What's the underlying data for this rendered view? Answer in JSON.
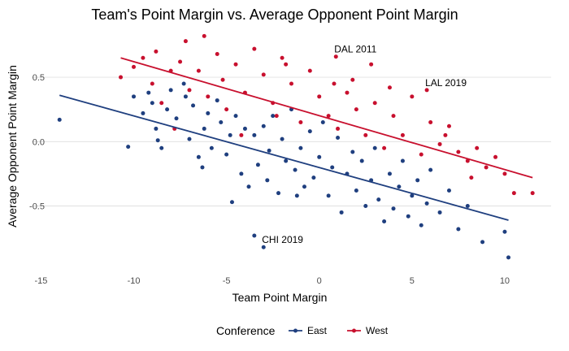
{
  "chart_data": {
    "type": "scatter",
    "title": "Team's Point Margin vs. Average Opponent Point Margin",
    "xlabel": "Team Point Margin",
    "ylabel": "Average Opponent Point Margin",
    "xlim": [
      -15.5,
      12.5
    ],
    "ylim": [
      -0.97,
      0.86
    ],
    "x_ticks": [
      -15,
      -10,
      -5,
      0,
      5,
      10
    ],
    "y_ticks": [
      -0.5,
      0.0,
      0.5
    ],
    "x_tick_labels": [
      "-15",
      "-10",
      "-5",
      "0",
      "5",
      "10"
    ],
    "y_tick_labels": [
      "-0.5",
      "0.0",
      "0.5"
    ],
    "grid": "horizontal major lines",
    "legend": {
      "title": "Conference",
      "position": "bottom"
    },
    "series": [
      {
        "name": "East",
        "color": "#1f3f7f",
        "trend_line": [
          [
            -14.0,
            0.36
          ],
          [
            10.2,
            -0.61
          ]
        ],
        "points": [
          [
            -14.0,
            0.17
          ],
          [
            -10.3,
            -0.04
          ],
          [
            -10.0,
            0.35
          ],
          [
            -9.5,
            0.22
          ],
          [
            -9.0,
            0.3
          ],
          [
            -8.8,
            0.1
          ],
          [
            -8.7,
            0.01
          ],
          [
            -8.5,
            -0.05
          ],
          [
            -8.2,
            0.25
          ],
          [
            -8.0,
            0.4
          ],
          [
            -7.7,
            0.18
          ],
          [
            -7.3,
            0.45
          ],
          [
            -7.0,
            0.02
          ],
          [
            -6.8,
            0.28
          ],
          [
            -6.5,
            -0.12
          ],
          [
            -6.2,
            0.1
          ],
          [
            -6.0,
            0.22
          ],
          [
            -5.8,
            -0.05
          ],
          [
            -5.5,
            0.32
          ],
          [
            -5.3,
            0.15
          ],
          [
            -5.0,
            -0.1
          ],
          [
            -4.8,
            0.05
          ],
          [
            -4.7,
            -0.47
          ],
          [
            -4.5,
            0.2
          ],
          [
            -4.2,
            -0.25
          ],
          [
            -4.0,
            0.1
          ],
          [
            -3.8,
            -0.35
          ],
          [
            -3.5,
            0.05
          ],
          [
            -3.3,
            -0.18
          ],
          [
            -3.0,
            0.12
          ],
          [
            -2.8,
            -0.3
          ],
          [
            -2.7,
            -0.07
          ],
          [
            -2.5,
            0.2
          ],
          [
            -2.2,
            -0.4
          ],
          [
            -2.0,
            0.02
          ],
          [
            -1.8,
            -0.15
          ],
          [
            -1.5,
            0.25
          ],
          [
            -1.3,
            -0.22
          ],
          [
            -1.0,
            -0.05
          ],
          [
            -0.8,
            -0.35
          ],
          [
            -0.5,
            0.08
          ],
          [
            -0.3,
            -0.28
          ],
          [
            0.0,
            -0.12
          ],
          [
            0.2,
            0.15
          ],
          [
            0.5,
            -0.42
          ],
          [
            0.7,
            -0.2
          ],
          [
            1.0,
            0.03
          ],
          [
            1.2,
            -0.55
          ],
          [
            1.5,
            -0.25
          ],
          [
            1.8,
            -0.08
          ],
          [
            2.0,
            -0.38
          ],
          [
            2.3,
            -0.15
          ],
          [
            2.5,
            -0.5
          ],
          [
            2.8,
            -0.3
          ],
          [
            3.0,
            -0.05
          ],
          [
            3.2,
            -0.45
          ],
          [
            3.5,
            -0.62
          ],
          [
            3.8,
            -0.25
          ],
          [
            4.0,
            -0.52
          ],
          [
            4.3,
            -0.35
          ],
          [
            4.5,
            -0.15
          ],
          [
            4.8,
            -0.58
          ],
          [
            5.0,
            -0.42
          ],
          [
            5.3,
            -0.3
          ],
          [
            5.5,
            -0.65
          ],
          [
            5.8,
            -0.48
          ],
          [
            6.0,
            -0.22
          ],
          [
            6.5,
            -0.55
          ],
          [
            7.0,
            -0.38
          ],
          [
            7.5,
            -0.68
          ],
          [
            8.0,
            -0.5
          ],
          [
            8.8,
            -0.78
          ],
          [
            10.0,
            -0.7
          ],
          [
            10.2,
            -0.9
          ],
          [
            -3.5,
            -0.73
          ],
          [
            -3.0,
            -0.82
          ],
          [
            -9.2,
            0.38
          ],
          [
            -7.2,
            0.35
          ],
          [
            -6.3,
            -0.2
          ],
          [
            -1.2,
            -0.42
          ]
        ]
      },
      {
        "name": "West",
        "color": "#c8102e",
        "trend_line": [
          [
            -10.7,
            0.65
          ],
          [
            11.5,
            -0.28
          ]
        ],
        "points": [
          [
            -10.7,
            0.5
          ],
          [
            -10.0,
            0.58
          ],
          [
            -9.5,
            0.65
          ],
          [
            -9.0,
            0.45
          ],
          [
            -8.8,
            0.7
          ],
          [
            -8.5,
            0.3
          ],
          [
            -8.0,
            0.55
          ],
          [
            -7.8,
            0.1
          ],
          [
            -7.5,
            0.62
          ],
          [
            -7.2,
            0.78
          ],
          [
            -7.0,
            0.4
          ],
          [
            -6.5,
            0.55
          ],
          [
            -6.2,
            0.82
          ],
          [
            -6.0,
            0.35
          ],
          [
            -5.5,
            0.68
          ],
          [
            -5.2,
            0.48
          ],
          [
            -5.0,
            0.25
          ],
          [
            -4.5,
            0.6
          ],
          [
            -4.0,
            0.38
          ],
          [
            -3.5,
            0.72
          ],
          [
            -3.0,
            0.52
          ],
          [
            -2.5,
            0.3
          ],
          [
            -2.0,
            0.65
          ],
          [
            -1.5,
            0.45
          ],
          [
            -1.0,
            0.15
          ],
          [
            -0.5,
            0.55
          ],
          [
            0.0,
            0.35
          ],
          [
            0.5,
            0.2
          ],
          [
            0.8,
            0.45
          ],
          [
            1.0,
            0.1
          ],
          [
            1.5,
            0.38
          ],
          [
            2.0,
            0.25
          ],
          [
            2.5,
            0.05
          ],
          [
            3.0,
            0.3
          ],
          [
            3.5,
            -0.05
          ],
          [
            4.0,
            0.2
          ],
          [
            4.5,
            0.05
          ],
          [
            5.0,
            0.35
          ],
          [
            5.5,
            -0.1
          ],
          [
            6.0,
            0.15
          ],
          [
            6.5,
            -0.02
          ],
          [
            7.0,
            0.12
          ],
          [
            7.5,
            -0.08
          ],
          [
            8.0,
            -0.15
          ],
          [
            8.5,
            -0.05
          ],
          [
            9.0,
            -0.2
          ],
          [
            9.5,
            -0.12
          ],
          [
            10.0,
            -0.25
          ],
          [
            10.5,
            -0.4
          ],
          [
            11.5,
            -0.4
          ],
          [
            0.9,
            0.66
          ],
          [
            5.8,
            0.4
          ],
          [
            -2.3,
            0.2
          ],
          [
            1.8,
            0.48
          ],
          [
            3.8,
            0.42
          ],
          [
            -4.2,
            0.05
          ],
          [
            2.8,
            0.6
          ],
          [
            6.8,
            0.05
          ],
          [
            8.2,
            -0.28
          ],
          [
            -1.8,
            0.6
          ]
        ]
      }
    ],
    "annotations": [
      {
        "text": "DAL 2011",
        "x": 0.9,
        "y": 0.66
      },
      {
        "text": "LAL 2019",
        "x": 5.8,
        "y": 0.4
      },
      {
        "text": "CHI 2019",
        "x": -3.0,
        "y": -0.82
      }
    ]
  }
}
